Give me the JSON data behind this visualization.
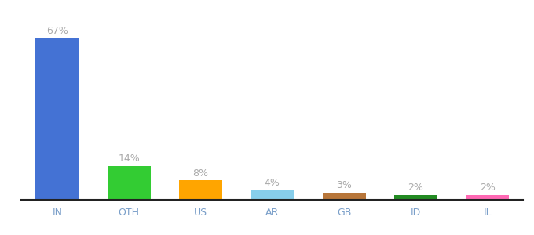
{
  "categories": [
    "IN",
    "OTH",
    "US",
    "AR",
    "GB",
    "ID",
    "IL"
  ],
  "values": [
    67,
    14,
    8,
    4,
    3,
    2,
    2
  ],
  "labels": [
    "67%",
    "14%",
    "8%",
    "4%",
    "3%",
    "2%",
    "2%"
  ],
  "bar_colors": [
    "#4472d4",
    "#33cc33",
    "#ffa500",
    "#87ceeb",
    "#b8763a",
    "#228b22",
    "#ff69b4"
  ],
  "background_color": "#ffffff",
  "label_color": "#aaaaaa",
  "tick_color": "#7a9fc9",
  "ylim": [
    0,
    75
  ],
  "figsize": [
    6.8,
    3.0
  ],
  "dpi": 100
}
